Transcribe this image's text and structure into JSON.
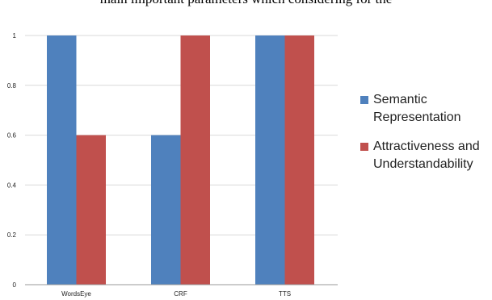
{
  "header_text": "main important parameters which considering for the",
  "chart_data": {
    "type": "bar",
    "categories": [
      "WordsEye",
      "CRF",
      "TTS"
    ],
    "series": [
      {
        "name": "Semantic Representation",
        "values": [
          1,
          0.6,
          1
        ],
        "color": "#4f81bd"
      },
      {
        "name": "Attractiveness and Understandability",
        "values": [
          0.6,
          1,
          1
        ],
        "color": "#c0504d"
      }
    ],
    "yticks": [
      "0",
      "0.2",
      "0.4",
      "0.6",
      "0.8",
      "1"
    ],
    "ylim": [
      0,
      1.2
    ],
    "grid": true,
    "legend_position": "right"
  }
}
